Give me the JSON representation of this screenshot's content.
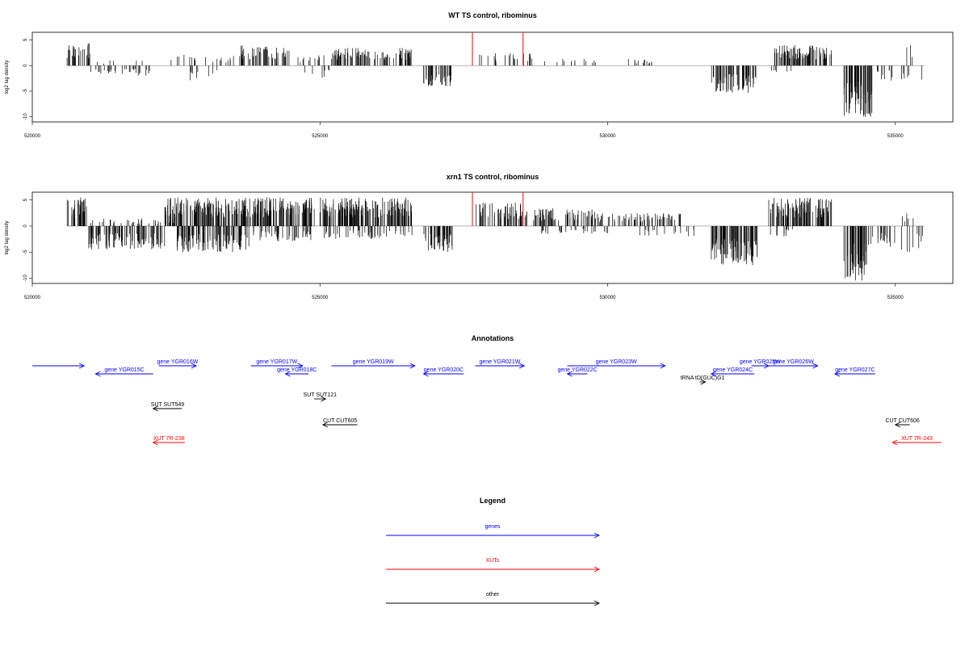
{
  "colors": {
    "bar": "#000000",
    "highlight": "#ff0000",
    "gene": "#0000ff",
    "xut": "#ff0000",
    "other": "#000000",
    "baseline": "#888888"
  },
  "chart_data": [
    {
      "type": "bar",
      "title": "WT TS control, ribominus",
      "ylabel": "log2 tag density",
      "xlim": [
        520000,
        536000
      ],
      "ylim": [
        -11,
        6.5
      ],
      "yticks": [
        5,
        0,
        -5,
        -10
      ],
      "xticks": [
        520000,
        525000,
        530000,
        535000
      ],
      "highlights": [
        527650,
        528530
      ],
      "grid": false,
      "signal_segments": [
        {
          "start": 520600,
          "end": 521000,
          "sign": 1,
          "amp": 4.5,
          "density": 10
        },
        {
          "start": 521000,
          "end": 522100,
          "sign": -1,
          "amp": 2.0,
          "density": 4
        },
        {
          "start": 521100,
          "end": 522000,
          "sign": 1,
          "amp": 1.2,
          "density": 1
        },
        {
          "start": 522200,
          "end": 522900,
          "sign": 1,
          "amp": 2.2,
          "density": 2
        },
        {
          "start": 522700,
          "end": 523300,
          "sign": -1,
          "amp": 3.0,
          "density": 2
        },
        {
          "start": 523000,
          "end": 523500,
          "sign": 1,
          "amp": 2.0,
          "density": 3
        },
        {
          "start": 523600,
          "end": 524500,
          "sign": 1,
          "amp": 4.0,
          "density": 8
        },
        {
          "start": 524600,
          "end": 525100,
          "sign": 1,
          "amp": 2.0,
          "density": 3
        },
        {
          "start": 524700,
          "end": 525200,
          "sign": -1,
          "amp": 2.5,
          "density": 2
        },
        {
          "start": 525200,
          "end": 526600,
          "sign": 1,
          "amp": 3.5,
          "density": 9
        },
        {
          "start": 526800,
          "end": 527300,
          "sign": -1,
          "amp": 4.2,
          "density": 10
        },
        {
          "start": 527700,
          "end": 528700,
          "sign": 1,
          "amp": 2.5,
          "density": 3
        },
        {
          "start": 528900,
          "end": 529800,
          "sign": 1,
          "amp": 1.4,
          "density": 2
        },
        {
          "start": 530300,
          "end": 531200,
          "sign": 1,
          "amp": 1.4,
          "density": 2
        },
        {
          "start": 531800,
          "end": 532600,
          "sign": -1,
          "amp": 5.5,
          "density": 10
        },
        {
          "start": 532800,
          "end": 533200,
          "sign": -1,
          "amp": 1.5,
          "density": 2
        },
        {
          "start": 532900,
          "end": 533900,
          "sign": 1,
          "amp": 4.0,
          "density": 12
        },
        {
          "start": 534100,
          "end": 534600,
          "sign": -1,
          "amp": 10,
          "density": 16
        },
        {
          "start": 534600,
          "end": 535000,
          "sign": -1,
          "amp": 3.0,
          "density": 4
        },
        {
          "start": 535100,
          "end": 535300,
          "sign": 1,
          "amp": 4.0,
          "density": 2
        },
        {
          "start": 535100,
          "end": 535500,
          "sign": -1,
          "amp": 3.0,
          "density": 2
        }
      ]
    },
    {
      "type": "bar",
      "title": "xrn1 TS control, ribominus",
      "ylabel": "log2 tag density",
      "xlim": [
        520000,
        536000
      ],
      "ylim": [
        -11,
        6.5
      ],
      "yticks": [
        5,
        0,
        -5,
        -10
      ],
      "xticks": [
        520000,
        525000,
        530000,
        535000
      ],
      "highlights": [
        527650,
        528530
      ],
      "grid": false,
      "signal_segments": [
        {
          "start": 520600,
          "end": 520950,
          "sign": 1,
          "amp": 5.5,
          "density": 14
        },
        {
          "start": 520950,
          "end": 522300,
          "sign": -1,
          "amp": 4.5,
          "density": 10
        },
        {
          "start": 521000,
          "end": 522500,
          "sign": 1,
          "amp": 1.5,
          "density": 3
        },
        {
          "start": 522300,
          "end": 524900,
          "sign": 1,
          "amp": 5.5,
          "density": 14
        },
        {
          "start": 522500,
          "end": 523800,
          "sign": -1,
          "amp": 5.0,
          "density": 10
        },
        {
          "start": 523800,
          "end": 524900,
          "sign": -1,
          "amp": 3.0,
          "density": 5
        },
        {
          "start": 525000,
          "end": 526600,
          "sign": 1,
          "amp": 5.5,
          "density": 14
        },
        {
          "start": 525000,
          "end": 526600,
          "sign": -1,
          "amp": 2.5,
          "density": 4
        },
        {
          "start": 526800,
          "end": 527300,
          "sign": -1,
          "amp": 5.0,
          "density": 12
        },
        {
          "start": 527700,
          "end": 528600,
          "sign": 1,
          "amp": 4.5,
          "density": 8
        },
        {
          "start": 528700,
          "end": 529800,
          "sign": 1,
          "amp": 3.5,
          "density": 8
        },
        {
          "start": 528800,
          "end": 530000,
          "sign": -1,
          "amp": 1.5,
          "density": 3
        },
        {
          "start": 529800,
          "end": 531300,
          "sign": 1,
          "amp": 2.5,
          "density": 6
        },
        {
          "start": 530500,
          "end": 531600,
          "sign": -1,
          "amp": 2.0,
          "density": 2
        },
        {
          "start": 531800,
          "end": 532600,
          "sign": -1,
          "amp": 7.5,
          "density": 14
        },
        {
          "start": 532800,
          "end": 533900,
          "sign": 1,
          "amp": 5.5,
          "density": 14
        },
        {
          "start": 532800,
          "end": 533300,
          "sign": -1,
          "amp": 2.0,
          "density": 3
        },
        {
          "start": 534100,
          "end": 534500,
          "sign": -1,
          "amp": 10.5,
          "density": 18
        },
        {
          "start": 534500,
          "end": 535000,
          "sign": -1,
          "amp": 4.0,
          "density": 5
        },
        {
          "start": 535100,
          "end": 535500,
          "sign": 1,
          "amp": 2.5,
          "density": 2
        },
        {
          "start": 535100,
          "end": 535500,
          "sign": -1,
          "amp": 5.0,
          "density": 3
        }
      ]
    }
  ],
  "annotations": {
    "title": "Annotations",
    "features": [
      {
        "label": "",
        "type": "gene",
        "start": 520000,
        "end": 520900,
        "strand": "+",
        "row": 0
      },
      {
        "label": "gene YGR015C",
        "type": "gene",
        "start": 521100,
        "end": 522100,
        "strand": "-",
        "row": 1
      },
      {
        "label": "gene YGR016W",
        "type": "gene",
        "start": 522200,
        "end": 522850,
        "strand": "+",
        "row": 0
      },
      {
        "label": "gene YGR017W",
        "type": "gene",
        "start": 523800,
        "end": 524700,
        "strand": "+",
        "row": 0
      },
      {
        "label": "gene YGR018C",
        "type": "gene",
        "start": 524400,
        "end": 524800,
        "strand": "-",
        "row": 1
      },
      {
        "label": "gene YGR019W",
        "type": "gene",
        "start": 525200,
        "end": 526650,
        "strand": "+",
        "row": 0
      },
      {
        "label": "gene YGR020C",
        "type": "gene",
        "start": 526800,
        "end": 527500,
        "strand": "-",
        "row": 1
      },
      {
        "label": "gene YGR021W",
        "type": "gene",
        "start": 527700,
        "end": 528550,
        "strand": "+",
        "row": 0
      },
      {
        "label": "gene YGR022C",
        "type": "gene",
        "start": 529300,
        "end": 529650,
        "strand": "-",
        "row": 1
      },
      {
        "label": "gene YGR023W",
        "type": "gene",
        "start": 529300,
        "end": 531000,
        "strand": "+",
        "row": 0
      },
      {
        "label": "tRNA tD(GUC)G1",
        "type": "other",
        "start": 531600,
        "end": 531700,
        "strand": "+",
        "row": 2
      },
      {
        "label": "gene YGR024C",
        "type": "gene",
        "start": 531800,
        "end": 532550,
        "strand": "-",
        "row": 1
      },
      {
        "label": "gene YGR025W",
        "type": "gene",
        "start": 532500,
        "end": 532800,
        "strand": "+",
        "row": 0
      },
      {
        "label": "gene YGR026W",
        "type": "gene",
        "start": 532800,
        "end": 533650,
        "strand": "+",
        "row": 0
      },
      {
        "label": "gene YGR027C",
        "type": "gene",
        "start": 533950,
        "end": 534650,
        "strand": "-",
        "row": 1
      },
      {
        "label": "SUT SUT549",
        "type": "other",
        "start": 522100,
        "end": 522600,
        "strand": "-",
        "row": 4
      },
      {
        "label": "SUT SUT121",
        "type": "other",
        "start": 524900,
        "end": 525100,
        "strand": "+",
        "row": 3
      },
      {
        "label": "CUT CUT605",
        "type": "other",
        "start": 525050,
        "end": 525650,
        "strand": "-",
        "row": 5
      },
      {
        "label": "CUT CUT606",
        "type": "other",
        "start": 535000,
        "end": 535250,
        "strand": "-",
        "row": 5
      },
      {
        "label": "XUT 7R-238",
        "type": "xut",
        "start": 522100,
        "end": 522650,
        "strand": "-",
        "row": 6
      },
      {
        "label": "XUT 7R-243",
        "type": "xut",
        "start": 534950,
        "end": 535800,
        "strand": "-",
        "row": 6
      }
    ]
  },
  "legend": {
    "title": "Legend",
    "items": [
      {
        "label": "genes",
        "type": "gene"
      },
      {
        "label": "XUTs",
        "type": "xut"
      },
      {
        "label": "other",
        "type": "other"
      }
    ]
  }
}
